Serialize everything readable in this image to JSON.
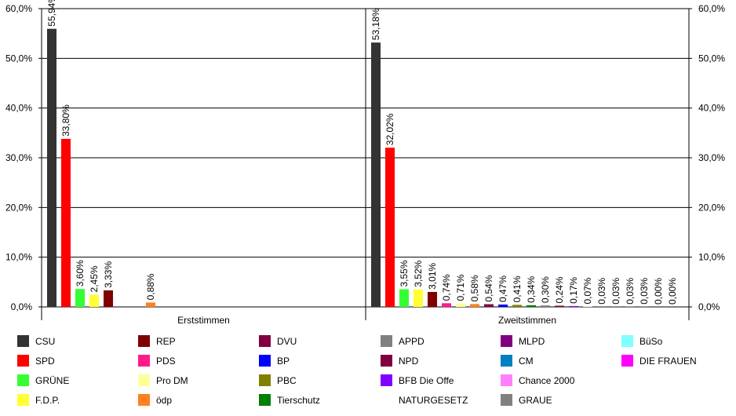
{
  "chart_data": {
    "type": "bar",
    "ylim": [
      0,
      60
    ],
    "y_ticks": [
      "0,0%",
      "10,0%",
      "20,0%",
      "30,0%",
      "40,0%",
      "50,0%",
      "60,0%"
    ],
    "grid": true,
    "legend_position": "bottom",
    "panels": [
      {
        "title": "Erststimmen",
        "bars": [
          {
            "party": "CSU",
            "value": 55.94,
            "label": "55,94%"
          },
          {
            "party": "SPD",
            "value": 33.8,
            "label": "33,80%"
          },
          {
            "party": "GRÜNE",
            "value": 3.6,
            "label": "3,60%"
          },
          {
            "party": "F.D.P.",
            "value": 2.45,
            "label": "2,45%"
          },
          {
            "party": "REP",
            "value": 3.33,
            "label": "3,33%"
          },
          {
            "party": "ödp",
            "value": 0.88,
            "label": "0,88%"
          }
        ]
      },
      {
        "title": "Zweitstimmen",
        "bars": [
          {
            "party": "CSU",
            "value": 53.18,
            "label": "53,18%"
          },
          {
            "party": "SPD",
            "value": 32.02,
            "label": "32,02%"
          },
          {
            "party": "GRÜNE",
            "value": 3.55,
            "label": "3,55%"
          },
          {
            "party": "F.D.P.",
            "value": 3.52,
            "label": "3,52%"
          },
          {
            "party": "REP",
            "value": 3.01,
            "label": "3,01%"
          },
          {
            "party": "PDS",
            "value": 0.74,
            "label": "0,74%"
          },
          {
            "party": "Pro DM",
            "value": 0.71,
            "label": "0,71%"
          },
          {
            "party": "ödp",
            "value": 0.58,
            "label": "0,58%"
          },
          {
            "party": "DVU",
            "value": 0.54,
            "label": "0,54%"
          },
          {
            "party": "BP",
            "value": 0.47,
            "label": "0,47%"
          },
          {
            "party": "PBC",
            "value": 0.41,
            "label": "0,41%"
          },
          {
            "party": "Tierschutz",
            "value": 0.34,
            "label": "0,34%"
          },
          {
            "party": "APPD",
            "value": 0.3,
            "label": "0,30%"
          },
          {
            "party": "NPD",
            "value": 0.24,
            "label": "0,24%"
          },
          {
            "party": "BFB Die Offe",
            "value": 0.17,
            "label": "0,17%"
          },
          {
            "party": "NATURGESETZ",
            "value": 0.07,
            "label": "0,07%"
          },
          {
            "party": "MLPD",
            "value": 0.03,
            "label": "0,03%"
          },
          {
            "party": "CM",
            "value": 0.03,
            "label": "0,03%"
          },
          {
            "party": "Chance 2000",
            "value": 0.03,
            "label": "0,03%"
          },
          {
            "party": "GRAUE",
            "value": 0.03,
            "label": "0,03%"
          },
          {
            "party": "BüSo",
            "value": 0.0,
            "label": "0,00%"
          },
          {
            "party": "DIE FRAUEN",
            "value": 0.0,
            "label": "0,00%"
          }
        ]
      }
    ],
    "legend": [
      [
        {
          "name": "CSU",
          "color": "#333333"
        },
        {
          "name": "SPD",
          "color": "#ff0000"
        },
        {
          "name": "GRÜNE",
          "color": "#33ff33"
        },
        {
          "name": "F.D.P.",
          "color": "#ffff33"
        }
      ],
      [
        {
          "name": "REP",
          "color": "#800000"
        },
        {
          "name": "PDS",
          "color": "#ff1a8c"
        },
        {
          "name": "Pro DM",
          "color": "#ffff99"
        },
        {
          "name": "ödp",
          "color": "#ff8020"
        }
      ],
      [
        {
          "name": "DVU",
          "color": "#800040"
        },
        {
          "name": "BP",
          "color": "#0000ff"
        },
        {
          "name": "PBC",
          "color": "#808000"
        },
        {
          "name": "Tierschutz",
          "color": "#008000"
        }
      ],
      [
        {
          "name": "APPD",
          "color": "#808080"
        },
        {
          "name": "NPD",
          "color": "#800040"
        },
        {
          "name": "BFB Die Offe",
          "color": "#8000ff"
        },
        {
          "name": "NATURGESETZ",
          "color": "#ffffff"
        }
      ],
      [
        {
          "name": "MLPD",
          "color": "#800080"
        },
        {
          "name": "CM",
          "color": "#0080c0"
        },
        {
          "name": "Chance 2000",
          "color": "#ff80ff"
        },
        {
          "name": "GRAUE",
          "color": "#808080"
        }
      ],
      [
        {
          "name": "BüSo",
          "color": "#80ffff"
        },
        {
          "name": "DIE FRAUEN",
          "color": "#ff00ff"
        }
      ]
    ]
  }
}
